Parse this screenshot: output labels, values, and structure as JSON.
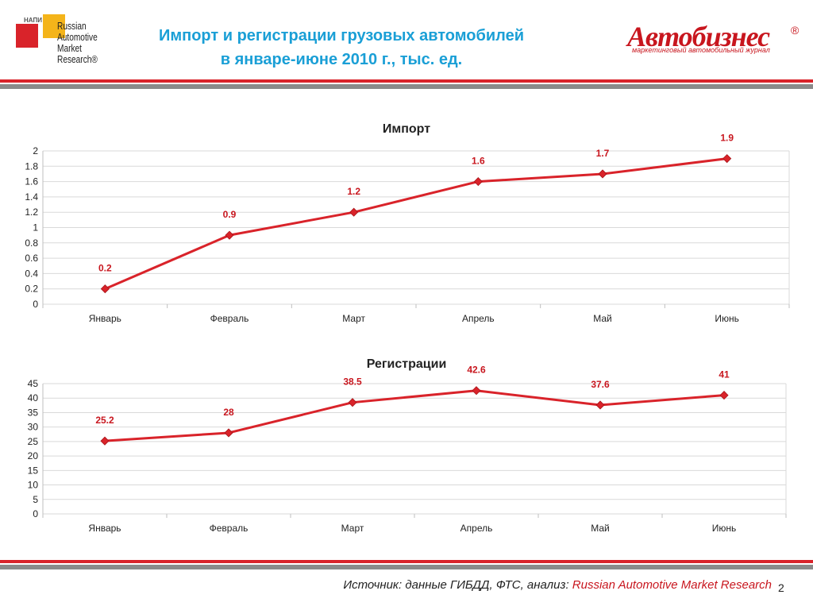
{
  "header": {
    "title_line1": "Импорт и регистрации грузовых автомобилей",
    "title_line2": "в январе-июне 2010 г., тыс. ед.",
    "logo_left": {
      "small_text": "НАПИ",
      "lines": [
        "Russian",
        "Automotive",
        "Market",
        "Research®"
      ]
    },
    "logo_right": {
      "brand": "Автобизнес",
      "registered": "®",
      "tagline": "маркетинговый автомобильный журнал"
    }
  },
  "footer": {
    "source_prefix": "Источник: данные ГИБДД, ФТС, анализ: ",
    "source_highlight": "Russian Automotive Market Research",
    "page_number": "2"
  },
  "colors": {
    "line": "#d9232a",
    "label": "#c8161e",
    "title": "#1a9fd6",
    "grid": "#d9d9d9"
  },
  "chart_data": [
    {
      "type": "line",
      "title": "Импорт",
      "categories": [
        "Январь",
        "Февраль",
        "Март",
        "Апрель",
        "Май",
        "Июнь"
      ],
      "values": [
        0.2,
        0.9,
        1.2,
        1.6,
        1.7,
        1.9
      ],
      "labels": [
        "0.2",
        "0.9",
        "1.2",
        "1.6",
        "1.7",
        "1.9"
      ],
      "ylim": [
        0,
        2
      ],
      "yticks": [
        "0",
        "0.2",
        "0.4",
        "0.6",
        "0.8",
        "1",
        "1.2",
        "1.4",
        "1.6",
        "1.8",
        "2"
      ],
      "grid": true,
      "legend": "none"
    },
    {
      "type": "line",
      "title": "Регистрации",
      "categories": [
        "Январь",
        "Февраль",
        "Март",
        "Апрель",
        "Май",
        "Июнь"
      ],
      "values": [
        25.2,
        28,
        38.5,
        42.6,
        37.6,
        41
      ],
      "labels": [
        "25.2",
        "28",
        "38.5",
        "42.6",
        "37.6",
        "41"
      ],
      "ylim": [
        0,
        45
      ],
      "yticks": [
        "0",
        "5",
        "10",
        "15",
        "20",
        "25",
        "30",
        "35",
        "40",
        "45"
      ],
      "grid": true,
      "legend": "none"
    }
  ]
}
